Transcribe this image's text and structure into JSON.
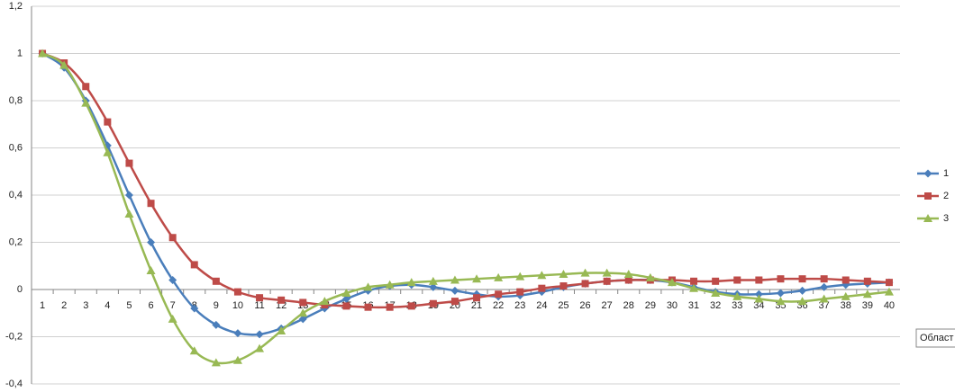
{
  "chart_data": {
    "type": "line",
    "categories": [
      "1",
      "2",
      "3",
      "4",
      "5",
      "6",
      "7",
      "8",
      "9",
      "10",
      "11",
      "12",
      "13",
      "14",
      "15",
      "16",
      "17",
      "18",
      "19",
      "20",
      "21",
      "22",
      "23",
      "24",
      "25",
      "26",
      "27",
      "28",
      "29",
      "30",
      "31",
      "32",
      "33",
      "34",
      "35",
      "36",
      "37",
      "38",
      "39",
      "40"
    ],
    "series": [
      {
        "name": "1",
        "color": "#4a7ebb",
        "marker": "diamond",
        "values": [
          1.0,
          0.94,
          0.8,
          0.61,
          0.4,
          0.2,
          0.04,
          -0.08,
          -0.15,
          -0.185,
          -0.19,
          -0.165,
          -0.125,
          -0.08,
          -0.04,
          -0.005,
          0.015,
          0.02,
          0.01,
          -0.005,
          -0.02,
          -0.03,
          -0.025,
          -0.01,
          0.01,
          0.025,
          0.035,
          0.04,
          0.04,
          0.03,
          0.01,
          -0.01,
          -0.02,
          -0.02,
          -0.015,
          -0.005,
          0.01,
          0.02,
          0.025,
          0.03
        ]
      },
      {
        "name": "2",
        "color": "#be4b48",
        "marker": "square",
        "values": [
          1.0,
          0.96,
          0.86,
          0.71,
          0.535,
          0.365,
          0.22,
          0.105,
          0.035,
          -0.01,
          -0.035,
          -0.045,
          -0.055,
          -0.065,
          -0.07,
          -0.075,
          -0.075,
          -0.07,
          -0.06,
          -0.05,
          -0.035,
          -0.02,
          -0.01,
          0.005,
          0.015,
          0.025,
          0.035,
          0.04,
          0.04,
          0.04,
          0.035,
          0.035,
          0.04,
          0.04,
          0.045,
          0.045,
          0.045,
          0.04,
          0.035,
          0.03
        ]
      },
      {
        "name": "3",
        "color": "#98b954",
        "marker": "triangle",
        "values": [
          1.0,
          0.95,
          0.79,
          0.58,
          0.32,
          0.08,
          -0.125,
          -0.26,
          -0.31,
          -0.3,
          -0.25,
          -0.175,
          -0.1,
          -0.05,
          -0.015,
          0.01,
          0.02,
          0.03,
          0.035,
          0.04,
          0.045,
          0.05,
          0.055,
          0.06,
          0.065,
          0.07,
          0.07,
          0.065,
          0.05,
          0.03,
          0.005,
          -0.015,
          -0.03,
          -0.04,
          -0.05,
          -0.05,
          -0.04,
          -0.03,
          -0.02,
          -0.01
        ]
      }
    ],
    "ylim": [
      -0.4,
      1.2
    ],
    "yticks": [
      {
        "value": -0.4,
        "label": "-0,4"
      },
      {
        "value": -0.2,
        "label": "-0,2"
      },
      0,
      {
        "value": 0.2,
        "label": "0,2"
      },
      {
        "value": 0.4,
        "label": "0,4"
      },
      {
        "value": 0.6,
        "label": "0,6"
      },
      {
        "value": 0.8,
        "label": "0,8"
      },
      1,
      {
        "value": 1.2,
        "label": "1,2"
      }
    ],
    "grid": true,
    "legend": "right",
    "annotation": "Област"
  }
}
